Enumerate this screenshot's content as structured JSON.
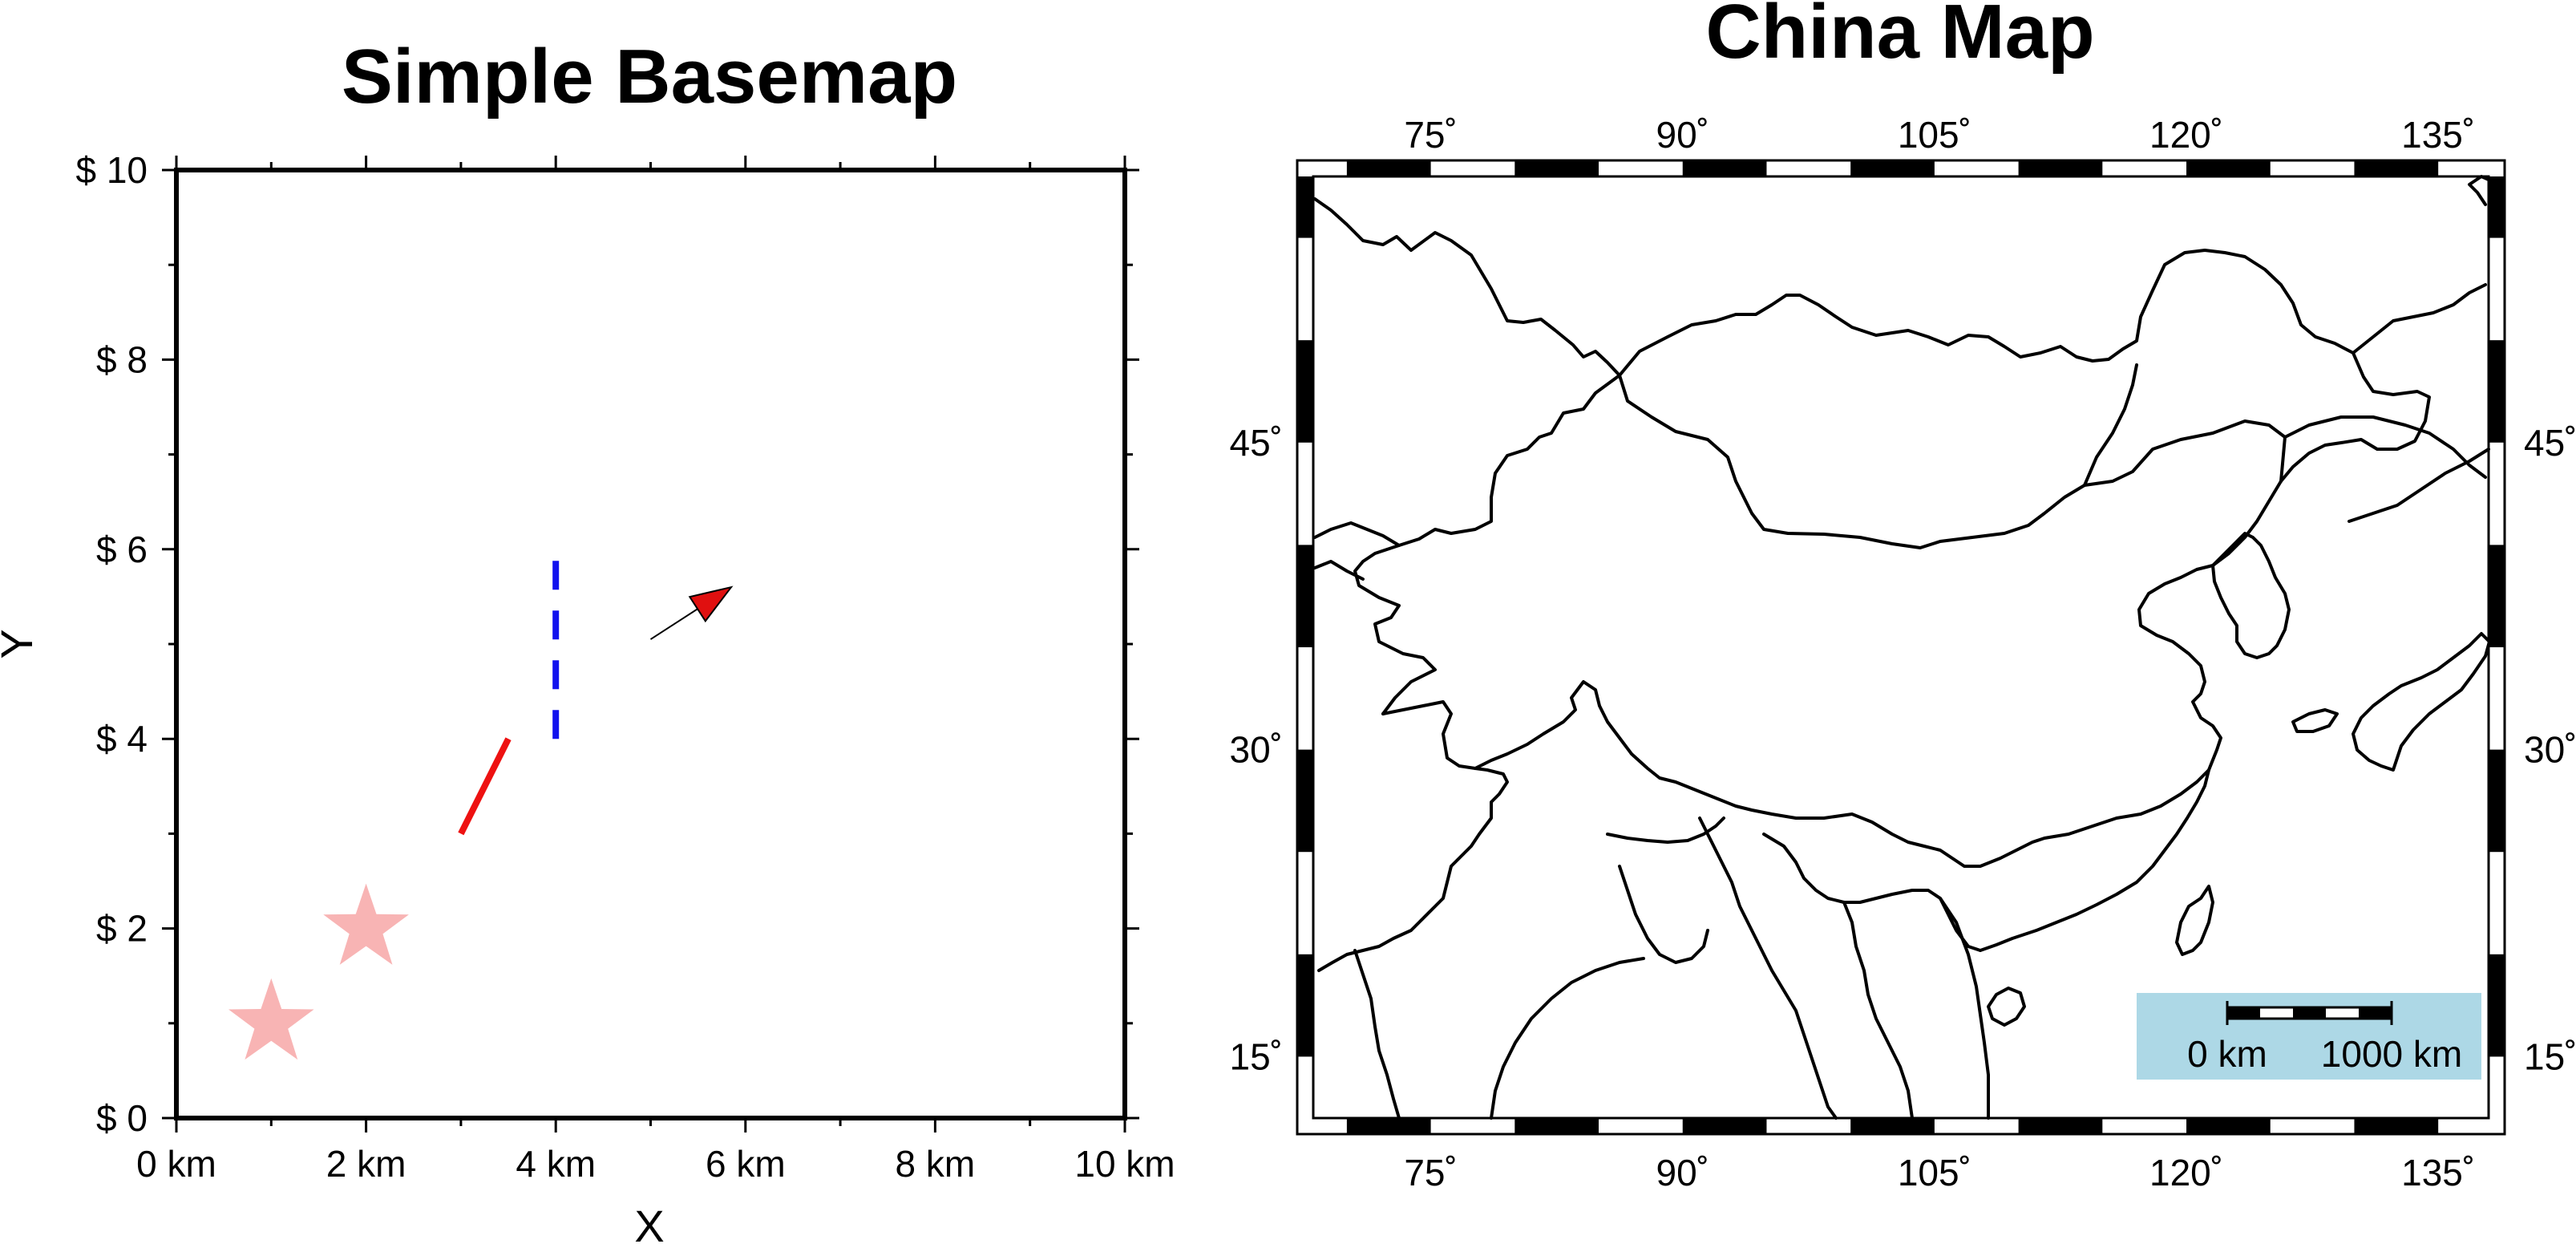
{
  "left_panel": {
    "title": "Simple Basemap",
    "xlabel": "X",
    "ylabel": "Y",
    "x_tick_labels": [
      "0 km",
      "2 km",
      "4 km",
      "6 km",
      "8 km",
      "10 km"
    ],
    "y_tick_labels": [
      "$ 0",
      "$ 2",
      "$ 4",
      "$ 6",
      "$ 8",
      "$ 10"
    ]
  },
  "chart_data": {
    "type": "scatter",
    "title": "Simple Basemap",
    "xlabel": "X",
    "ylabel": "Y",
    "xlim": [
      0,
      10
    ],
    "ylim": [
      0,
      10
    ],
    "x_ticks": [
      0,
      2,
      4,
      6,
      8,
      10
    ],
    "y_ticks": [
      0,
      2,
      4,
      6,
      8,
      10
    ],
    "grid": false,
    "stars": {
      "color": "#f8b4b4",
      "points": [
        [
          1,
          1
        ],
        [
          2,
          2
        ]
      ]
    },
    "red_line": {
      "color": "#ee1111",
      "from": [
        3,
        3
      ],
      "to": [
        3.5,
        4
      ]
    },
    "blue_dashed_line": {
      "color": "#1111ee",
      "from": [
        4,
        4
      ],
      "to": [
        4,
        6
      ]
    },
    "arrow": {
      "color": "#e01010",
      "from": [
        5,
        5.05
      ],
      "to": [
        5.85,
        5.6
      ]
    }
  },
  "right_panel": {
    "title": "China Map",
    "lon_labels": [
      "75˚",
      "90˚",
      "105˚",
      "120˚",
      "135˚"
    ],
    "lat_labels": [
      "15˚",
      "30˚",
      "45˚"
    ],
    "region": {
      "lon": [
        68,
        138
      ],
      "lat": [
        12,
        58
      ]
    },
    "scale_bar": {
      "start_label": "0 km",
      "end_label": "1000 km",
      "box_color": "#add8e6"
    }
  }
}
